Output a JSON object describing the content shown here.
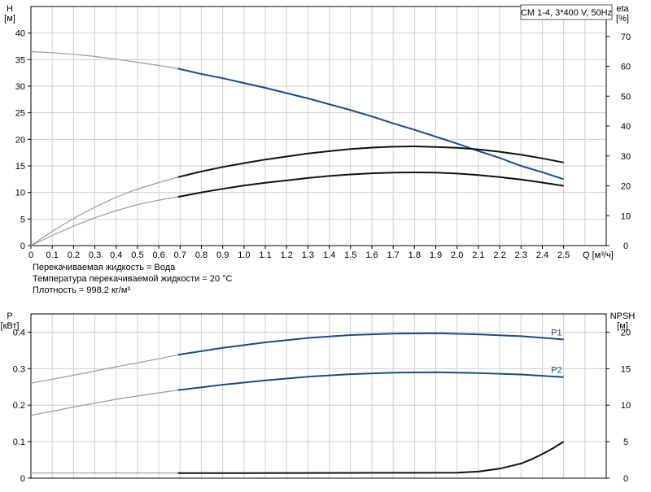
{
  "chart_data": [
    {
      "type": "line",
      "panel": "top",
      "legend_box": "CM 1-4, 3*400 V, 50Hz",
      "y_left_label": [
        "H",
        "[м]"
      ],
      "y_right_label": [
        "eta",
        "[%]"
      ],
      "x_label": "Q [м³/ч]",
      "xlim": [
        0,
        2.7
      ],
      "x_ticks": [
        "0",
        "0.1",
        "0.2",
        "0.3",
        "0.4",
        "0.5",
        "0.6",
        "0.7",
        "0.8",
        "0.9",
        "1.0",
        "1.1",
        "1.2",
        "1.3",
        "1.4",
        "1.5",
        "1.6",
        "1.7",
        "1.8",
        "1.9",
        "2.0",
        "2.1",
        "2.2",
        "2.3",
        "2.4",
        "2.5"
      ],
      "y_left_lim": [
        0,
        45
      ],
      "y_left_ticks": [
        0,
        5,
        10,
        15,
        20,
        25,
        30,
        35,
        40
      ],
      "y_right_lim": [
        0,
        80
      ],
      "y_right_ticks": [
        0,
        10,
        20,
        30,
        40,
        50,
        60,
        70
      ],
      "grid": true,
      "series": [
        {
          "axis": "left",
          "color": "#1a4a8a",
          "faded_until": 0.69,
          "x": [
            0,
            0.1,
            0.2,
            0.3,
            0.4,
            0.5,
            0.6,
            0.69,
            0.8,
            0.9,
            1.0,
            1.1,
            1.2,
            1.3,
            1.4,
            1.5,
            1.6,
            1.7,
            1.8,
            1.9,
            2.0,
            2.1,
            2.2,
            2.3,
            2.4,
            2.5
          ],
          "y": [
            36.5,
            36.3,
            36.0,
            35.6,
            35.1,
            34.5,
            33.9,
            33.3,
            32.3,
            31.5,
            30.6,
            29.7,
            28.7,
            27.7,
            26.6,
            25.5,
            24.3,
            23.0,
            21.8,
            20.5,
            19.2,
            17.8,
            16.5,
            15.0,
            13.8,
            12.5
          ]
        },
        {
          "axis": "right",
          "color": "#111111",
          "faded_until": 0.69,
          "x": [
            0,
            0.1,
            0.2,
            0.3,
            0.4,
            0.5,
            0.6,
            0.69,
            0.8,
            0.9,
            1.0,
            1.1,
            1.2,
            1.3,
            1.4,
            1.5,
            1.6,
            1.7,
            1.8,
            1.9,
            2.0,
            2.1,
            2.2,
            2.3,
            2.4,
            2.5
          ],
          "y": [
            0,
            4.8,
            9.1,
            12.9,
            16.2,
            18.9,
            21.1,
            22.9,
            24.8,
            26.3,
            27.6,
            28.8,
            29.8,
            30.8,
            31.6,
            32.3,
            32.8,
            33.1,
            33.2,
            33.0,
            32.7,
            32.2,
            31.4,
            30.4,
            29.2,
            27.8
          ]
        },
        {
          "axis": "right",
          "color": "#111111",
          "faded_until": 0.69,
          "x": [
            0,
            0.1,
            0.2,
            0.3,
            0.4,
            0.5,
            0.6,
            0.69,
            0.8,
            0.9,
            1.0,
            1.1,
            1.2,
            1.3,
            1.4,
            1.5,
            1.6,
            1.7,
            1.8,
            1.9,
            2.0,
            2.1,
            2.2,
            2.3,
            2.4,
            2.5
          ],
          "y": [
            0,
            3.4,
            6.5,
            9.3,
            11.7,
            13.7,
            15.2,
            16.3,
            17.8,
            19.0,
            20.1,
            21.0,
            21.8,
            22.6,
            23.3,
            23.8,
            24.2,
            24.4,
            24.5,
            24.4,
            24.1,
            23.6,
            22.9,
            22.1,
            21.1,
            20.0
          ]
        }
      ]
    },
    {
      "type": "line",
      "panel": "bottom",
      "y_left_label": [
        "P",
        "[кВт]"
      ],
      "y_right_label": [
        "NPSH",
        "[м]"
      ],
      "xlim": [
        0,
        2.7
      ],
      "y_left_lim": [
        0,
        0.45
      ],
      "y_left_ticks": [
        "0",
        "0.1",
        "0.2",
        "0.3",
        "0.4"
      ],
      "y_right_lim": [
        0,
        22.5
      ],
      "y_right_ticks": [
        0,
        5,
        10,
        15,
        20
      ],
      "grid": true,
      "series": [
        {
          "name": "P1",
          "axis": "left",
          "color": "#1a4a8a",
          "faded_until": 0.69,
          "x": [
            0,
            0.2,
            0.4,
            0.6,
            0.69,
            0.9,
            1.1,
            1.3,
            1.5,
            1.7,
            1.9,
            2.1,
            2.3,
            2.5
          ],
          "y": [
            0.26,
            0.282,
            0.305,
            0.327,
            0.338,
            0.357,
            0.372,
            0.384,
            0.392,
            0.396,
            0.397,
            0.394,
            0.389,
            0.38
          ]
        },
        {
          "name": "P2",
          "axis": "left",
          "color": "#1a4a8a",
          "faded_until": 0.69,
          "x": [
            0,
            0.2,
            0.4,
            0.6,
            0.69,
            0.9,
            1.1,
            1.3,
            1.5,
            1.7,
            1.9,
            2.1,
            2.3,
            2.5
          ],
          "y": [
            0.172,
            0.195,
            0.216,
            0.234,
            0.241,
            0.256,
            0.268,
            0.278,
            0.285,
            0.289,
            0.29,
            0.288,
            0.284,
            0.277
          ]
        },
        {
          "axis": "right",
          "color": "#111111",
          "faded_until": 0.69,
          "x": [
            0,
            0.69,
            1.0,
            1.5,
            2.0,
            2.1,
            2.2,
            2.3,
            2.35,
            2.4,
            2.45,
            2.5
          ],
          "y": [
            0.7,
            0.7,
            0.7,
            0.72,
            0.75,
            0.9,
            1.3,
            2.0,
            2.6,
            3.3,
            4.1,
            5.0
          ]
        }
      ]
    }
  ],
  "notes": [
    "Перекачиваемая жидкость = Вода",
    "Температура перекачиваемой жидкости = 20 °C",
    "Плотность = 998.2 кг/м³"
  ]
}
